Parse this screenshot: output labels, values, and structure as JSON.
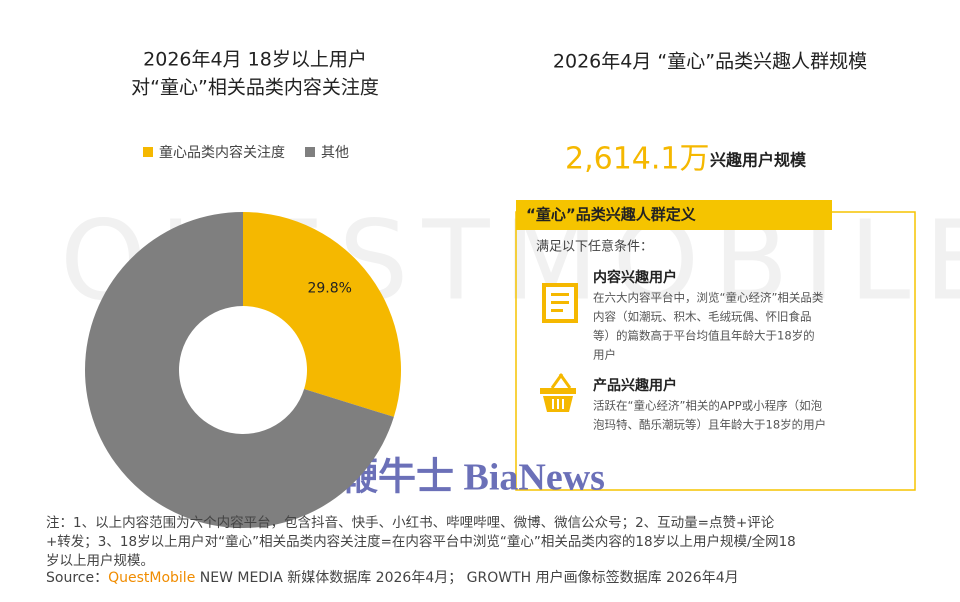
{
  "chart_data": {
    "type": "donut",
    "title": [
      "2026年4月 18岁以上用户",
      "对“童心”相关品类内容关注度"
    ],
    "categories": [
      "童心品类内容关注度",
      "其他"
    ],
    "values": [
      29.8,
      70.2
    ],
    "value_labels": [
      "29.8%",
      null
    ],
    "colors": [
      "#f5b800",
      "#7f7f7f"
    ],
    "legend": "top"
  },
  "panel": {
    "title": "2026年4月 “童心”品类兴趣人群规模",
    "big_number": "2,614.1万",
    "big_number_label": "兴趣用户规模",
    "box_title": "“童心”品类兴趣人群定义",
    "intro": "满足以下任意条件：",
    "items": [
      {
        "title": "内容兴趣用户",
        "lines": [
          "在六大内容平台中，浏览“童心经济”相关品类",
          "内容（如潮玩、积木、毛绒玩偶、怀旧食品",
          "等）的篇数高于平台均值且年龄大于18岁的",
          "用户"
        ]
      },
      {
        "title": "产品兴趣用户",
        "lines": [
          "活跃在“童心经济”相关的APP或小程序（如泡",
          "泡玛特、酷乐潮玩等）且年龄大于18岁的用户"
        ]
      }
    ]
  },
  "watermarks": [
    "QUESTMOBILE",
    "鞭牛士 BiaNews"
  ],
  "notes": [
    "注：1、以上内容范围为六个内容平台，包含抖音、快手、小红书、哔哩哔哩、微博、微信公众号；2、互动量=点赞+评论",
    "+转发；3、18岁以上用户对“童心”相关品类内容关注度=在内容平台中浏览“童心”相关品类内容的18岁以上用户规模/全网18",
    "岁以上用户规模。"
  ],
  "source": {
    "label": "Source：",
    "brand": "QuestMobile",
    "text": " NEW MEDIA 新媒体数据库 2026年4月； GROWTH 用户画像标签数据库 2026年4月"
  }
}
